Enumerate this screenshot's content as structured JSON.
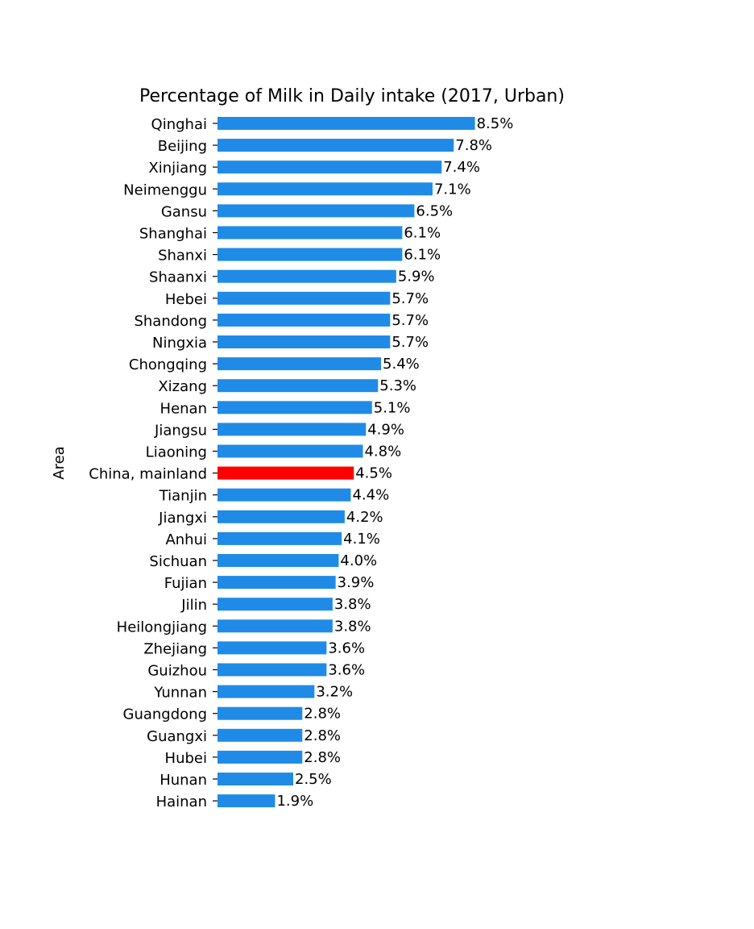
{
  "chart_data": {
    "type": "bar",
    "orientation": "horizontal",
    "title": "Percentage of Milk in Daily intake (2017, Urban)",
    "ylabel": "Area",
    "xlabel": "",
    "grid": false,
    "value_format": "percent_1dp",
    "bar_color": "#1f8be6",
    "highlight_color": "#ff0000",
    "highlight_category": "China, mainland",
    "categories": [
      "Qinghai",
      "Beijing",
      "Xinjiang",
      "Neimenggu",
      "Gansu",
      "Shanghai",
      "Shanxi",
      "Shaanxi",
      "Hebei",
      "Shandong",
      "Ningxia",
      "Chongqing",
      "Xizang",
      "Henan",
      "Jiangsu",
      "Liaoning",
      "China, mainland",
      "Tianjin",
      "Jiangxi",
      "Anhui",
      "Sichuan",
      "Fujian",
      "Jilin",
      "Heilongjiang",
      "Zhejiang",
      "Guizhou",
      "Yunnan",
      "Guangdong",
      "Guangxi",
      "Hubei",
      "Hunan",
      "Hainan"
    ],
    "values": [
      8.5,
      7.8,
      7.4,
      7.1,
      6.5,
      6.1,
      6.1,
      5.9,
      5.7,
      5.7,
      5.7,
      5.4,
      5.3,
      5.1,
      4.9,
      4.8,
      4.5,
      4.4,
      4.2,
      4.1,
      4.0,
      3.9,
      3.8,
      3.8,
      3.6,
      3.6,
      3.2,
      2.8,
      2.8,
      2.8,
      2.5,
      1.9
    ],
    "value_labels": [
      "8.5%",
      "7.8%",
      "7.4%",
      "7.1%",
      "6.5%",
      "6.1%",
      "6.1%",
      "5.9%",
      "5.7%",
      "5.7%",
      "5.7%",
      "5.4%",
      "5.3%",
      "5.1%",
      "4.9%",
      "4.8%",
      "4.5%",
      "4.4%",
      "4.2%",
      "4.1%",
      "4.0%",
      "3.9%",
      "3.8%",
      "3.8%",
      "3.6%",
      "3.6%",
      "3.2%",
      "2.8%",
      "2.8%",
      "2.8%",
      "2.5%",
      "1.9%"
    ]
  }
}
